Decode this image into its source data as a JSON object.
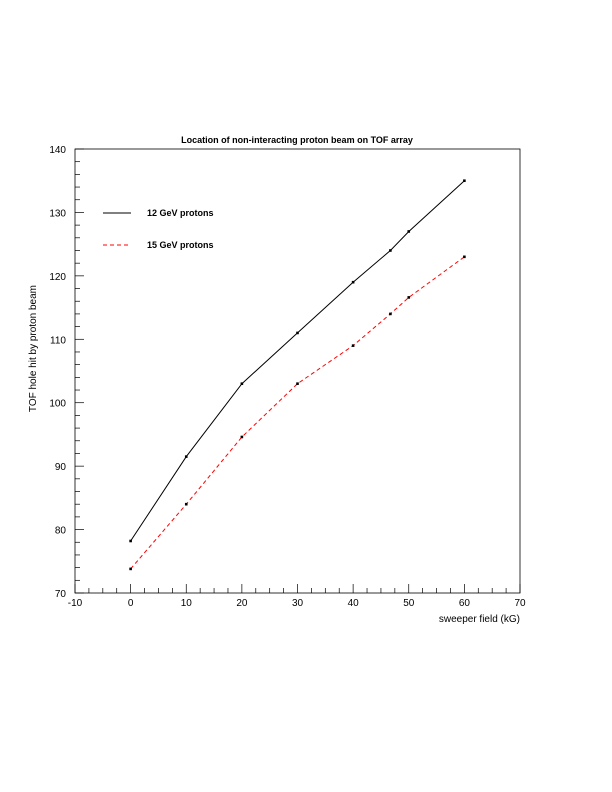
{
  "chart_data": {
    "type": "line",
    "title": "Location of non-interacting proton beam on TOF array",
    "xlabel": "sweeper field (kG)",
    "ylabel": "TOF hole hit by proton beam",
    "xlim": [
      -10,
      70
    ],
    "ylim": [
      70,
      140
    ],
    "x_ticks": [
      -10,
      0,
      10,
      20,
      30,
      40,
      50,
      60,
      70
    ],
    "y_ticks": [
      70,
      80,
      90,
      100,
      110,
      120,
      130,
      140
    ],
    "grid": false,
    "legend_position": "top-left",
    "series": [
      {
        "name": "12 GeV protons",
        "color": "#000000",
        "dash": "solid",
        "x": [
          0,
          10,
          20,
          30,
          40,
          46.7,
          50,
          60
        ],
        "y": [
          78.2,
          91.5,
          103,
          111,
          119,
          124,
          127,
          135
        ]
      },
      {
        "name": "15 GeV protons",
        "color": "#ff0000",
        "dash": "dashed",
        "x": [
          0,
          10,
          20,
          30,
          40,
          46.7,
          50,
          60
        ],
        "y": [
          73.8,
          84,
          94.6,
          103,
          109,
          114,
          116.6,
          123
        ]
      }
    ]
  }
}
